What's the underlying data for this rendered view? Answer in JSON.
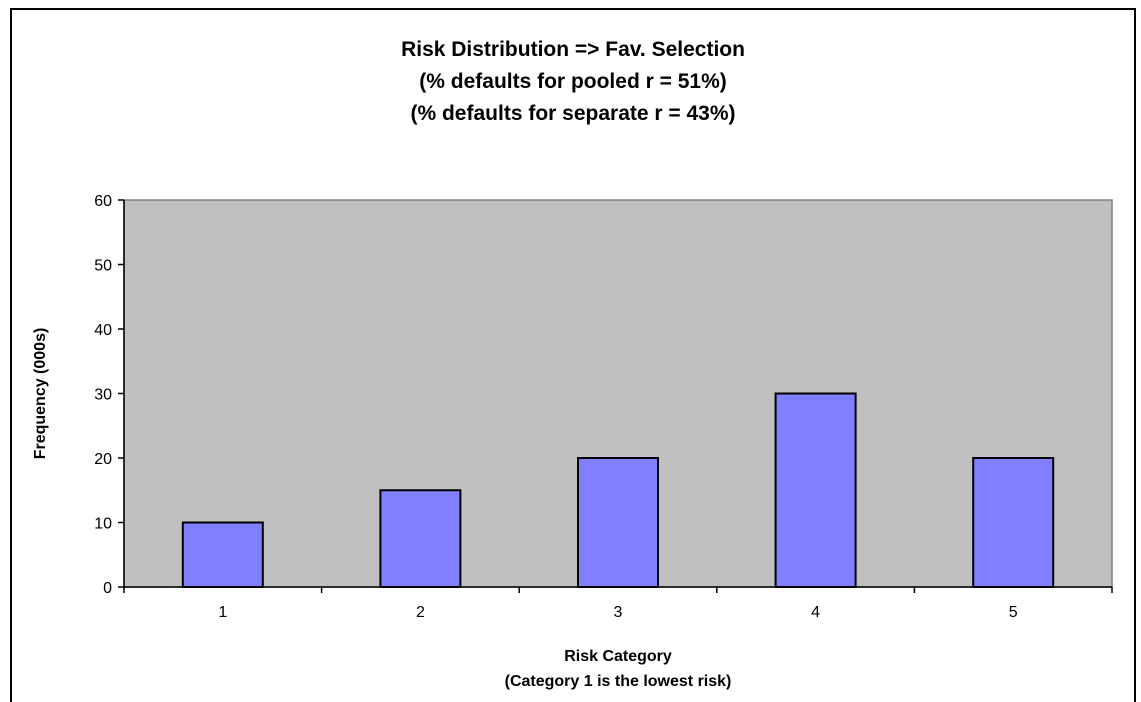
{
  "chart_data": {
    "type": "bar",
    "title_lines": [
      "Risk Distribution => Fav. Selection",
      "(% defaults for pooled r = 51%)",
      "(% defaults for separate r = 43%)"
    ],
    "categories": [
      "1",
      "2",
      "3",
      "4",
      "5"
    ],
    "values": [
      10,
      15,
      20,
      30,
      20
    ],
    "ylabel": "Frequency (000s)",
    "xlabel_lines": [
      "Risk Category",
      "(Category 1 is the lowest risk)"
    ],
    "ylim": [
      0,
      60
    ],
    "yticks": [
      0,
      10,
      20,
      30,
      40,
      50,
      60
    ],
    "grid": false,
    "legend": "none",
    "colors": {
      "bar_fill": "#8080FF",
      "plot_bg": "#C0C0C0",
      "plot_border": "#808080",
      "text": "#000000"
    }
  }
}
